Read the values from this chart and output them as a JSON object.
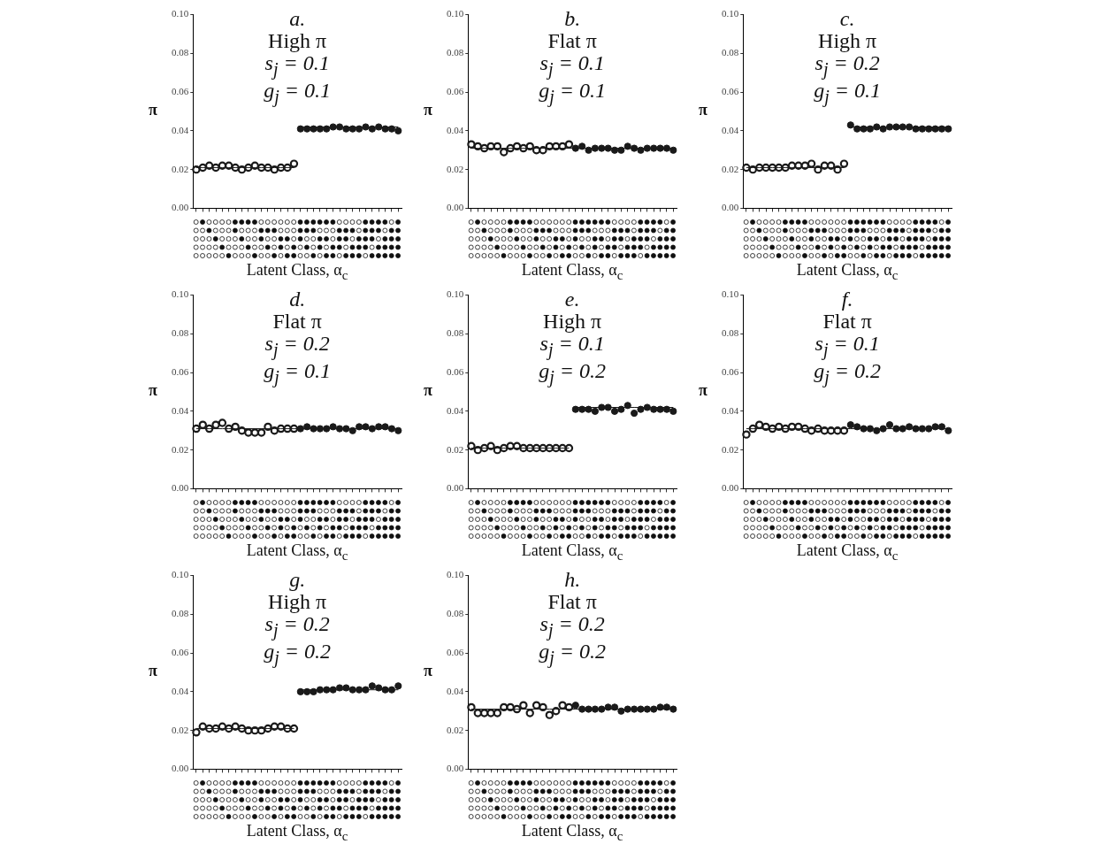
{
  "chart_data": [
    {
      "type": "scatter",
      "title": "a.",
      "subtitle": "High π",
      "annotations": [
        "s$_{j}$ = 0.1",
        "g$_{j}$ = 0.1"
      ],
      "xlabel": "Latent Class, α$_{c}$",
      "ylabel": "π",
      "categories": [
        null,
        null,
        null,
        null,
        null,
        null,
        null,
        null,
        null,
        null,
        null,
        null,
        null,
        null,
        null,
        null,
        null,
        null,
        null,
        null,
        null,
        null,
        null,
        null,
        null,
        null,
        null,
        null,
        null,
        null,
        null,
        null
      ],
      "ylim": [
        0,
        0.1
      ],
      "yticks": [
        {
          "value": 0,
          "label": "0.00"
        },
        {
          "value": 0.02,
          "label": "0.02"
        },
        {
          "value": 0.04,
          "label": "0.04"
        },
        {
          "value": 0.06,
          "label": "0.06"
        },
        {
          "value": 0.08,
          "label": "0.08"
        },
        {
          "value": 0.1,
          "label": "0.10"
        }
      ],
      "tick_labels": "y",
      "grid": false,
      "legend": false,
      "marker": "circle",
      "series": [
        {
          "type": "line",
          "marker": "none",
          "color": "#1a1a1a",
          "values": [
            0.021,
            0.021,
            0.021,
            0.021,
            0.021,
            0.021,
            0.021,
            0.021,
            0.021,
            0.021,
            0.021,
            0.021,
            0.021,
            0.021,
            0.021,
            0.021,
            null,
            null,
            null,
            null,
            null,
            null,
            null,
            null,
            null,
            null,
            null,
            null,
            null,
            null,
            null,
            null
          ]
        },
        {
          "type": "line",
          "marker": "none",
          "color": "#1a1a1a",
          "values": [
            null,
            null,
            null,
            null,
            null,
            null,
            null,
            null,
            null,
            null,
            null,
            null,
            null,
            null,
            null,
            null,
            0.042,
            0.042,
            0.042,
            0.042,
            0.042,
            0.042,
            0.042,
            0.042,
            0.042,
            0.042,
            0.042,
            0.042,
            0.042,
            0.042,
            0.042,
            0.042
          ]
        },
        {
          "color": "#1a1a1a",
          "values": [
            0.02,
            0.021,
            0.022,
            0.021,
            0.022,
            0.022,
            0.021,
            0.02,
            0.021,
            0.022,
            0.021,
            0.021,
            0.02,
            0.021,
            0.021,
            0.023,
            null,
            null,
            null,
            null,
            null,
            null,
            null,
            null,
            null,
            null,
            null,
            null,
            null,
            null,
            null,
            null
          ]
        },
        {
          "color": "#1a1a1a",
          "values": [
            null,
            null,
            null,
            null,
            null,
            null,
            null,
            null,
            null,
            null,
            null,
            null,
            null,
            null,
            null,
            null,
            0.041,
            0.041,
            0.041,
            0.041,
            0.041,
            0.042,
            0.042,
            0.041,
            0.041,
            0.041,
            0.042,
            0.041,
            0.042,
            0.041,
            0.041,
            0.04
          ]
        }
      ]
    },
    {
      "type": "scatter",
      "title": "b.",
      "subtitle": "Flat π",
      "annotations": [
        "s$_{j}$ = 0.1",
        "g$_{j}$ = 0.1"
      ],
      "xlabel": "Latent Class, α$_{c}$",
      "ylabel": "π",
      "categories": [
        null,
        null,
        null,
        null,
        null,
        null,
        null,
        null,
        null,
        null,
        null,
        null,
        null,
        null,
        null,
        null,
        null,
        null,
        null,
        null,
        null,
        null,
        null,
        null,
        null,
        null,
        null,
        null,
        null,
        null,
        null,
        null
      ],
      "ylim": [
        0,
        0.1
      ],
      "yticks": [
        {
          "value": 0,
          "label": "0.00"
        },
        {
          "value": 0.02,
          "label": "0.02"
        },
        {
          "value": 0.04,
          "label": "0.04"
        },
        {
          "value": 0.06,
          "label": "0.06"
        },
        {
          "value": 0.08,
          "label": "0.08"
        },
        {
          "value": 0.1,
          "label": "0.10"
        }
      ],
      "tick_labels": "y",
      "grid": false,
      "legend": false,
      "marker": "circle",
      "series": [
        {
          "type": "line",
          "marker": "none",
          "color": "#1a1a1a",
          "values": [
            0.031,
            0.031,
            0.031,
            0.031,
            0.031,
            0.031,
            0.031,
            0.031,
            0.031,
            0.031,
            0.031,
            0.031,
            0.031,
            0.031,
            0.031,
            0.031,
            0.031,
            0.031,
            0.031,
            0.031,
            0.031,
            0.031,
            0.031,
            0.031,
            0.031,
            0.031,
            0.031,
            0.031,
            0.031,
            0.031,
            0.031,
            0.031
          ]
        },
        {
          "color": "#1a1a1a",
          "values": [
            0.033,
            0.032,
            0.031,
            0.032,
            0.032,
            0.029,
            0.031,
            0.032,
            0.031,
            0.032,
            0.03,
            0.03,
            0.032,
            0.032,
            0.032,
            0.033,
            null,
            null,
            null,
            null,
            null,
            null,
            null,
            null,
            null,
            null,
            null,
            null,
            null,
            null,
            null,
            null
          ]
        },
        {
          "color": "#1a1a1a",
          "values": [
            null,
            null,
            null,
            null,
            null,
            null,
            null,
            null,
            null,
            null,
            null,
            null,
            null,
            null,
            null,
            null,
            0.031,
            0.032,
            0.03,
            0.031,
            0.031,
            0.031,
            0.03,
            0.03,
            0.032,
            0.031,
            0.03,
            0.031,
            0.031,
            0.031,
            0.031,
            0.03
          ]
        }
      ]
    },
    {
      "type": "scatter",
      "title": "c.",
      "subtitle": "High π",
      "annotations": [
        "s$_{j}$ = 0.2",
        "g$_{j}$ = 0.1"
      ],
      "xlabel": "Latent Class, α$_{c}$",
      "ylabel": "π",
      "categories": [
        null,
        null,
        null,
        null,
        null,
        null,
        null,
        null,
        null,
        null,
        null,
        null,
        null,
        null,
        null,
        null,
        null,
        null,
        null,
        null,
        null,
        null,
        null,
        null,
        null,
        null,
        null,
        null,
        null,
        null,
        null,
        null
      ],
      "ylim": [
        0,
        0.1
      ],
      "yticks": [
        {
          "value": 0,
          "label": "0.00"
        },
        {
          "value": 0.02,
          "label": "0.02"
        },
        {
          "value": 0.04,
          "label": "0.04"
        },
        {
          "value": 0.06,
          "label": "0.06"
        },
        {
          "value": 0.08,
          "label": "0.08"
        },
        {
          "value": 0.1,
          "label": "0.10"
        }
      ],
      "tick_labels": "y",
      "grid": false,
      "legend": false,
      "marker": "circle",
      "series": [
        {
          "type": "line",
          "marker": "none",
          "color": "#1a1a1a",
          "values": [
            0.021,
            0.021,
            0.021,
            0.021,
            0.021,
            0.021,
            0.021,
            0.021,
            0.021,
            0.021,
            0.021,
            0.021,
            0.021,
            0.021,
            0.021,
            0.021,
            null,
            null,
            null,
            null,
            null,
            null,
            null,
            null,
            null,
            null,
            null,
            null,
            null,
            null,
            null,
            null
          ]
        },
        {
          "type": "line",
          "marker": "none",
          "color": "#1a1a1a",
          "values": [
            null,
            null,
            null,
            null,
            null,
            null,
            null,
            null,
            null,
            null,
            null,
            null,
            null,
            null,
            null,
            null,
            0.042,
            0.042,
            0.042,
            0.042,
            0.042,
            0.042,
            0.042,
            0.042,
            0.042,
            0.042,
            0.042,
            0.042,
            0.042,
            0.042,
            0.042,
            0.042
          ]
        },
        {
          "color": "#1a1a1a",
          "values": [
            0.021,
            0.02,
            0.021,
            0.021,
            0.021,
            0.021,
            0.021,
            0.022,
            0.022,
            0.022,
            0.023,
            0.02,
            0.022,
            0.022,
            0.02,
            0.023,
            null,
            null,
            null,
            null,
            null,
            null,
            null,
            null,
            null,
            null,
            null,
            null,
            null,
            null,
            null,
            null
          ]
        },
        {
          "color": "#1a1a1a",
          "values": [
            null,
            null,
            null,
            null,
            null,
            null,
            null,
            null,
            null,
            null,
            null,
            null,
            null,
            null,
            null,
            null,
            0.043,
            0.041,
            0.041,
            0.041,
            0.042,
            0.041,
            0.042,
            0.042,
            0.042,
            0.042,
            0.041,
            0.041,
            0.041,
            0.041,
            0.041,
            0.041
          ]
        }
      ]
    },
    {
      "type": "scatter",
      "title": "d.",
      "subtitle": "Flat π",
      "annotations": [
        "s$_{j}$ = 0.2",
        "g$_{j}$ = 0.1"
      ],
      "xlabel": "Latent Class, α$_{c}$",
      "ylabel": "π",
      "categories": [
        null,
        null,
        null,
        null,
        null,
        null,
        null,
        null,
        null,
        null,
        null,
        null,
        null,
        null,
        null,
        null,
        null,
        null,
        null,
        null,
        null,
        null,
        null,
        null,
        null,
        null,
        null,
        null,
        null,
        null,
        null,
        null
      ],
      "ylim": [
        0,
        0.1
      ],
      "yticks": [
        {
          "value": 0,
          "label": "0.00"
        },
        {
          "value": 0.02,
          "label": "0.02"
        },
        {
          "value": 0.04,
          "label": "0.04"
        },
        {
          "value": 0.06,
          "label": "0.06"
        },
        {
          "value": 0.08,
          "label": "0.08"
        },
        {
          "value": 0.1,
          "label": "0.10"
        }
      ],
      "tick_labels": "y",
      "grid": false,
      "legend": false,
      "marker": "circle",
      "series": [
        {
          "type": "line",
          "marker": "none",
          "color": "#1a1a1a",
          "values": [
            0.031,
            0.031,
            0.031,
            0.031,
            0.031,
            0.031,
            0.031,
            0.031,
            0.031,
            0.031,
            0.031,
            0.031,
            0.031,
            0.031,
            0.031,
            0.031,
            0.031,
            0.031,
            0.031,
            0.031,
            0.031,
            0.031,
            0.031,
            0.031,
            0.031,
            0.031,
            0.031,
            0.031,
            0.031,
            0.031,
            0.031,
            0.031
          ]
        },
        {
          "color": "#1a1a1a",
          "values": [
            0.031,
            0.033,
            0.031,
            0.033,
            0.034,
            0.031,
            0.032,
            0.03,
            0.029,
            0.029,
            0.029,
            0.032,
            0.03,
            0.031,
            0.031,
            0.031,
            null,
            null,
            null,
            null,
            null,
            null,
            null,
            null,
            null,
            null,
            null,
            null,
            null,
            null,
            null,
            null
          ]
        },
        {
          "color": "#1a1a1a",
          "values": [
            null,
            null,
            null,
            null,
            null,
            null,
            null,
            null,
            null,
            null,
            null,
            null,
            null,
            null,
            null,
            null,
            0.031,
            0.032,
            0.031,
            0.031,
            0.031,
            0.032,
            0.031,
            0.031,
            0.03,
            0.032,
            0.032,
            0.031,
            0.032,
            0.032,
            0.031,
            0.03
          ]
        }
      ]
    },
    {
      "type": "scatter",
      "title": "e.",
      "subtitle": "High π",
      "annotations": [
        "s$_{j}$ = 0.1",
        "g$_{j}$ = 0.2"
      ],
      "xlabel": "Latent Class, α$_{c}$",
      "ylabel": "π",
      "categories": [
        null,
        null,
        null,
        null,
        null,
        null,
        null,
        null,
        null,
        null,
        null,
        null,
        null,
        null,
        null,
        null,
        null,
        null,
        null,
        null,
        null,
        null,
        null,
        null,
        null,
        null,
        null,
        null,
        null,
        null,
        null,
        null
      ],
      "ylim": [
        0,
        0.1
      ],
      "yticks": [
        {
          "value": 0,
          "label": "0.00"
        },
        {
          "value": 0.02,
          "label": "0.02"
        },
        {
          "value": 0.04,
          "label": "0.04"
        },
        {
          "value": 0.06,
          "label": "0.06"
        },
        {
          "value": 0.08,
          "label": "0.08"
        },
        {
          "value": 0.1,
          "label": "0.10"
        }
      ],
      "tick_labels": "y",
      "grid": false,
      "legend": false,
      "marker": "circle",
      "series": [
        {
          "type": "line",
          "marker": "none",
          "color": "#1a1a1a",
          "values": [
            0.021,
            0.021,
            0.021,
            0.021,
            0.021,
            0.021,
            0.021,
            0.021,
            0.021,
            0.021,
            0.021,
            0.021,
            0.021,
            0.021,
            0.021,
            0.021,
            null,
            null,
            null,
            null,
            null,
            null,
            null,
            null,
            null,
            null,
            null,
            null,
            null,
            null,
            null,
            null
          ]
        },
        {
          "type": "line",
          "marker": "none",
          "color": "#1a1a1a",
          "values": [
            null,
            null,
            null,
            null,
            null,
            null,
            null,
            null,
            null,
            null,
            null,
            null,
            null,
            null,
            null,
            null,
            0.042,
            0.042,
            0.042,
            0.042,
            0.042,
            0.042,
            0.042,
            0.042,
            0.042,
            0.042,
            0.042,
            0.042,
            0.042,
            0.042,
            0.042,
            0.042
          ]
        },
        {
          "color": "#1a1a1a",
          "values": [
            0.022,
            0.02,
            0.021,
            0.022,
            0.02,
            0.021,
            0.022,
            0.022,
            0.021,
            0.021,
            0.021,
            0.021,
            0.021,
            0.021,
            0.021,
            0.021,
            null,
            null,
            null,
            null,
            null,
            null,
            null,
            null,
            null,
            null,
            null,
            null,
            null,
            null,
            null,
            null
          ]
        },
        {
          "color": "#1a1a1a",
          "values": [
            null,
            null,
            null,
            null,
            null,
            null,
            null,
            null,
            null,
            null,
            null,
            null,
            null,
            null,
            null,
            null,
            0.041,
            0.041,
            0.041,
            0.04,
            0.042,
            0.042,
            0.04,
            0.041,
            0.043,
            0.039,
            0.041,
            0.042,
            0.041,
            0.041,
            0.041,
            0.04
          ]
        }
      ]
    },
    {
      "type": "scatter",
      "title": "f.",
      "subtitle": "Flat π",
      "annotations": [
        "s$_{j}$ = 0.1",
        "g$_{j}$ = 0.2"
      ],
      "xlabel": "Latent Class, α$_{c}$",
      "ylabel": "π",
      "categories": [
        null,
        null,
        null,
        null,
        null,
        null,
        null,
        null,
        null,
        null,
        null,
        null,
        null,
        null,
        null,
        null,
        null,
        null,
        null,
        null,
        null,
        null,
        null,
        null,
        null,
        null,
        null,
        null,
        null,
        null,
        null,
        null
      ],
      "ylim": [
        0,
        0.1
      ],
      "yticks": [
        {
          "value": 0,
          "label": "0.00"
        },
        {
          "value": 0.02,
          "label": "0.02"
        },
        {
          "value": 0.04,
          "label": "0.04"
        },
        {
          "value": 0.06,
          "label": "0.06"
        },
        {
          "value": 0.08,
          "label": "0.08"
        },
        {
          "value": 0.1,
          "label": "0.10"
        }
      ],
      "tick_labels": "y",
      "grid": false,
      "legend": false,
      "marker": "circle",
      "series": [
        {
          "type": "line",
          "marker": "none",
          "color": "#1a1a1a",
          "values": [
            0.031,
            0.031,
            0.031,
            0.031,
            0.031,
            0.031,
            0.031,
            0.031,
            0.031,
            0.031,
            0.031,
            0.031,
            0.031,
            0.031,
            0.031,
            0.031,
            0.031,
            0.031,
            0.031,
            0.031,
            0.031,
            0.031,
            0.031,
            0.031,
            0.031,
            0.031,
            0.031,
            0.031,
            0.031,
            0.031,
            0.031,
            0.031
          ]
        },
        {
          "color": "#1a1a1a",
          "values": [
            0.028,
            0.031,
            0.033,
            0.032,
            0.031,
            0.032,
            0.031,
            0.032,
            0.032,
            0.031,
            0.03,
            0.031,
            0.03,
            0.03,
            0.03,
            0.03,
            null,
            null,
            null,
            null,
            null,
            null,
            null,
            null,
            null,
            null,
            null,
            null,
            null,
            null,
            null,
            null
          ]
        },
        {
          "color": "#1a1a1a",
          "values": [
            null,
            null,
            null,
            null,
            null,
            null,
            null,
            null,
            null,
            null,
            null,
            null,
            null,
            null,
            null,
            null,
            0.033,
            0.032,
            0.031,
            0.031,
            0.03,
            0.031,
            0.033,
            0.031,
            0.031,
            0.032,
            0.031,
            0.031,
            0.031,
            0.032,
            0.032,
            0.03
          ]
        }
      ]
    },
    {
      "type": "scatter",
      "title": "g.",
      "subtitle": "High π",
      "annotations": [
        "s$_{j}$ = 0.2",
        "g$_{j}$ = 0.2"
      ],
      "xlabel": "Latent Class, α$_{c}$",
      "ylabel": "π",
      "categories": [
        null,
        null,
        null,
        null,
        null,
        null,
        null,
        null,
        null,
        null,
        null,
        null,
        null,
        null,
        null,
        null,
        null,
        null,
        null,
        null,
        null,
        null,
        null,
        null,
        null,
        null,
        null,
        null,
        null,
        null,
        null,
        null
      ],
      "ylim": [
        0,
        0.1
      ],
      "yticks": [
        {
          "value": 0,
          "label": "0.00"
        },
        {
          "value": 0.02,
          "label": "0.02"
        },
        {
          "value": 0.04,
          "label": "0.04"
        },
        {
          "value": 0.06,
          "label": "0.06"
        },
        {
          "value": 0.08,
          "label": "0.08"
        },
        {
          "value": 0.1,
          "label": "0.10"
        }
      ],
      "tick_labels": "y",
      "grid": false,
      "legend": false,
      "marker": "circle",
      "series": [
        {
          "type": "line",
          "marker": "none",
          "color": "#1a1a1a",
          "values": [
            0.021,
            0.021,
            0.021,
            0.021,
            0.021,
            0.021,
            0.021,
            0.021,
            0.021,
            0.021,
            0.021,
            0.021,
            0.021,
            0.021,
            0.021,
            0.021,
            null,
            null,
            null,
            null,
            null,
            null,
            null,
            null,
            null,
            null,
            null,
            null,
            null,
            null,
            null,
            null
          ]
        },
        {
          "type": "line",
          "marker": "none",
          "color": "#1a1a1a",
          "values": [
            null,
            null,
            null,
            null,
            null,
            null,
            null,
            null,
            null,
            null,
            null,
            null,
            null,
            null,
            null,
            null,
            0.041,
            0.041,
            0.041,
            0.041,
            0.041,
            0.041,
            0.041,
            0.041,
            0.041,
            0.041,
            0.041,
            0.041,
            0.041,
            0.041,
            0.041,
            0.041
          ]
        },
        {
          "color": "#1a1a1a",
          "values": [
            0.019,
            0.022,
            0.021,
            0.021,
            0.022,
            0.021,
            0.022,
            0.021,
            0.02,
            0.02,
            0.02,
            0.021,
            0.022,
            0.022,
            0.021,
            0.021,
            null,
            null,
            null,
            null,
            null,
            null,
            null,
            null,
            null,
            null,
            null,
            null,
            null,
            null,
            null,
            null
          ]
        },
        {
          "color": "#1a1a1a",
          "values": [
            null,
            null,
            null,
            null,
            null,
            null,
            null,
            null,
            null,
            null,
            null,
            null,
            null,
            null,
            null,
            null,
            0.04,
            0.04,
            0.04,
            0.041,
            0.041,
            0.041,
            0.042,
            0.042,
            0.041,
            0.041,
            0.041,
            0.043,
            0.042,
            0.041,
            0.041,
            0.043
          ]
        }
      ]
    },
    {
      "type": "scatter",
      "title": "h.",
      "subtitle": "Flat π",
      "annotations": [
        "s$_{j}$ = 0.2",
        "g$_{j}$ = 0.2"
      ],
      "xlabel": "Latent Class, α$_{c}$",
      "ylabel": "π",
      "categories": [
        null,
        null,
        null,
        null,
        null,
        null,
        null,
        null,
        null,
        null,
        null,
        null,
        null,
        null,
        null,
        null,
        null,
        null,
        null,
        null,
        null,
        null,
        null,
        null,
        null,
        null,
        null,
        null,
        null,
        null,
        null,
        null
      ],
      "ylim": [
        0,
        0.1
      ],
      "yticks": [
        {
          "value": 0,
          "label": "0.00"
        },
        {
          "value": 0.02,
          "label": "0.02"
        },
        {
          "value": 0.04,
          "label": "0.04"
        },
        {
          "value": 0.06,
          "label": "0.06"
        },
        {
          "value": 0.08,
          "label": "0.08"
        },
        {
          "value": 0.1,
          "label": "0.10"
        }
      ],
      "tick_labels": "y",
      "grid": false,
      "legend": false,
      "marker": "circle",
      "series": [
        {
          "type": "line",
          "marker": "none",
          "color": "#1a1a1a",
          "values": [
            0.031,
            0.031,
            0.031,
            0.031,
            0.031,
            0.031,
            0.031,
            0.031,
            0.031,
            0.031,
            0.031,
            0.031,
            0.031,
            0.031,
            0.031,
            0.031,
            0.031,
            0.031,
            0.031,
            0.031,
            0.031,
            0.031,
            0.031,
            0.031,
            0.031,
            0.031,
            0.031,
            0.031,
            0.031,
            0.031,
            0.031,
            0.031
          ]
        },
        {
          "color": "#1a1a1a",
          "values": [
            0.032,
            0.029,
            0.029,
            0.029,
            0.029,
            0.032,
            0.032,
            0.031,
            0.033,
            0.029,
            0.033,
            0.032,
            0.028,
            0.03,
            0.033,
            0.032,
            null,
            null,
            null,
            null,
            null,
            null,
            null,
            null,
            null,
            null,
            null,
            null,
            null,
            null,
            null,
            null
          ]
        },
        {
          "color": "#1a1a1a",
          "values": [
            null,
            null,
            null,
            null,
            null,
            null,
            null,
            null,
            null,
            null,
            null,
            null,
            null,
            null,
            null,
            null,
            0.033,
            0.031,
            0.031,
            0.031,
            0.031,
            0.032,
            0.032,
            0.03,
            0.031,
            0.031,
            0.031,
            0.031,
            0.031,
            0.032,
            0.032,
            0.031
          ]
        }
      ]
    }
  ]
}
